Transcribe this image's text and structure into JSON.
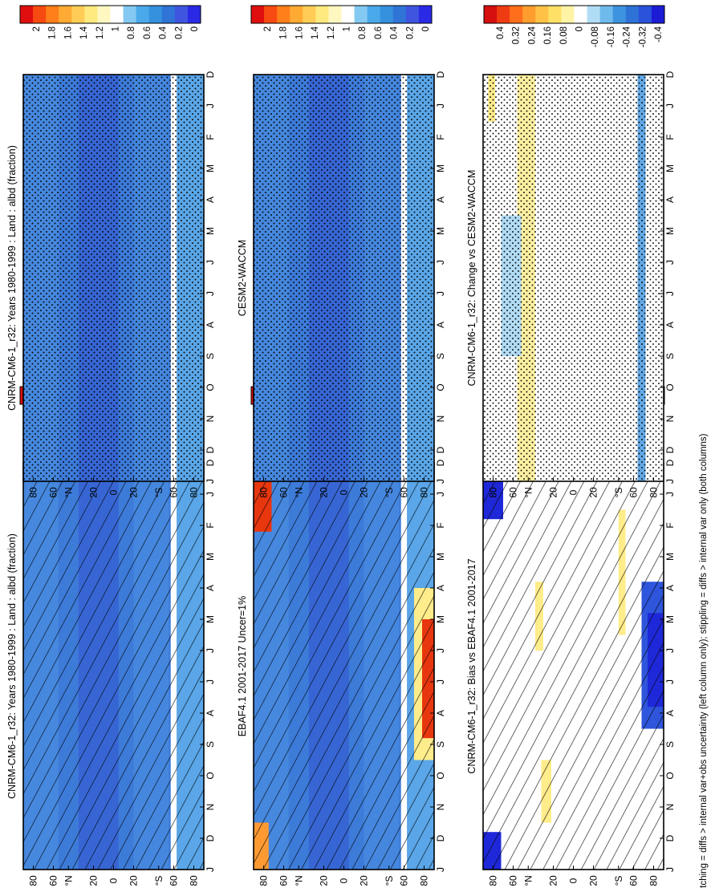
{
  "footnote": "hatching = diffs > internal var+obs uncertainty (left column only); stippling = diffs > internal var only (both columns)",
  "colors": {
    "clim": [
      "#2a2ae6",
      "#3f55df",
      "#2f74d6",
      "#3590dd",
      "#49a9ea",
      "#84c9f2",
      "#ffffff",
      "#fff7c0",
      "#ffea7f",
      "#ffcc55",
      "#ffaa33",
      "#ff7f1a",
      "#f74a10",
      "#e00f0f"
    ],
    "diff": [
      "#1c1cd6",
      "#2a52db",
      "#2e72d8",
      "#3d93e0",
      "#6fbaec",
      "#b1dcf5",
      "#ffffff",
      "#fff3a6",
      "#ffe066",
      "#ffc247",
      "#ff9d2e",
      "#ff6e1a",
      "#ef3b12",
      "#d60f0f"
    ],
    "fill": {
      "clim_base": "#3d7bd9",
      "clim_deep": "#3766d4",
      "clim_light": "#5aa6e8",
      "warm": "#ffec8a",
      "red": "#e8360f",
      "orange": "#ff9a33",
      "strong_blue": "#1f28d8"
    }
  },
  "chart_data": [
    {
      "type": "heatmap",
      "title": "CNRM-CM6-1_r32: Years 1980-1999 : Land : albd (fraction)",
      "x": [
        "D",
        "J",
        "F",
        "M",
        "A",
        "M",
        "J",
        "J",
        "A",
        "S",
        "O",
        "N",
        "D",
        "J"
      ],
      "y_ticks": [
        "80",
        "60",
        "°N",
        "20",
        "0",
        "20",
        "°S",
        "60",
        "80"
      ],
      "ylim": [
        -90,
        90
      ],
      "colorbar": [
        "2",
        "1.8",
        "1.6",
        "1.4",
        "1.2",
        "1",
        "0.8",
        "0.6",
        "0.4",
        "0.2",
        "0"
      ],
      "overlay": "hatching",
      "grid": false,
      "approx_field": {
        "background": 0.4,
        "deep_band_lat": [
          0,
          30
        ],
        "missing_band_lat": [
          -63,
          -58
        ],
        "antarctic": 0.6
      }
    },
    {
      "type": "heatmap",
      "title": "CNRM-CM6-1_r32: Years 1980-1999 : Land : albd (fraction)",
      "x": [
        "D",
        "J",
        "F",
        "M",
        "A",
        "M",
        "J",
        "J",
        "A",
        "S",
        "O",
        "N",
        "D",
        "J"
      ],
      "y_ticks": [
        "80",
        "60",
        "°N",
        "20",
        "0",
        "20",
        "°S",
        "60",
        "80"
      ],
      "ylim": [
        -90,
        90
      ],
      "colorbar": [
        "2",
        "1.8",
        "1.6",
        "1.4",
        "1.2",
        "1",
        "0.8",
        "0.6",
        "0.4",
        "0.2",
        "0"
      ],
      "overlay": "stippling",
      "grid": false
    },
    {
      "type": "heatmap",
      "title": "EBAF4.1 2001-2017 Uncer=1%",
      "x": [
        "D",
        "J",
        "F",
        "M",
        "A",
        "M",
        "J",
        "J",
        "A",
        "S",
        "O",
        "N",
        "D",
        "J"
      ],
      "y_ticks": [
        "80",
        "60",
        "°N",
        "20",
        "0",
        "20",
        "°S",
        "60",
        "80"
      ],
      "ylim": [
        -90,
        90
      ],
      "colorbar": [
        "2",
        "1.8",
        "1.6",
        "1.4",
        "1.2",
        "1",
        "0.8",
        "0.6",
        "0.4",
        "0.2",
        "0"
      ],
      "overlay": "hatching",
      "grid": false,
      "approx_field": {
        "background": 0.4,
        "polar_north_winter": 1.8,
        "antarctic_winter": 1.6
      }
    },
    {
      "type": "heatmap",
      "title": "CESM2-WACCM",
      "x": [
        "D",
        "J",
        "F",
        "M",
        "A",
        "M",
        "J",
        "J",
        "A",
        "S",
        "O",
        "N",
        "D",
        "J"
      ],
      "y_ticks": [
        "80",
        "60",
        "°N",
        "20",
        "0",
        "20",
        "°S",
        "60",
        "80"
      ],
      "ylim": [
        -90,
        90
      ],
      "colorbar": [
        "2",
        "1.8",
        "1.6",
        "1.4",
        "1.2",
        "1",
        "0.8",
        "0.6",
        "0.4",
        "0.2",
        "0"
      ],
      "overlay": "stippling",
      "grid": false
    },
    {
      "type": "heatmap",
      "title": "CNRM-CM6-1_r32: Bias vs EBAF4.1 2001-2017",
      "x": [
        "D",
        "J",
        "F",
        "M",
        "A",
        "M",
        "J",
        "J",
        "A",
        "S",
        "O",
        "N",
        "D",
        "J"
      ],
      "y_ticks": [
        "80",
        "60",
        "°N",
        "20",
        "0",
        "20",
        "°S",
        "60",
        "80"
      ],
      "ylim": [
        -90,
        90
      ],
      "colorbar": [
        "0.4",
        "0.32",
        "0.24",
        "0.16",
        "0.08",
        "0",
        "-0.08",
        "-0.16",
        "-0.24",
        "-0.32",
        "-0.4"
      ],
      "overlay": "hatching",
      "grid": false,
      "approx_field": {
        "background": 0,
        "north_polar_winter": -0.4,
        "south_polar_winter": -0.4,
        "bands": 0.08
      }
    },
    {
      "type": "heatmap",
      "title": "CNRM-CM6-1_r32: Change vs CESM2-WACCM",
      "x": [
        "D",
        "J",
        "F",
        "M",
        "A",
        "M",
        "J",
        "J",
        "A",
        "S",
        "O",
        "N",
        "D",
        "J"
      ],
      "y_ticks": [
        "80",
        "60",
        "°N",
        "20",
        "0",
        "20",
        "°S",
        "60",
        "80"
      ],
      "ylim": [
        -90,
        90
      ],
      "colorbar": [
        "0.4",
        "0.32",
        "0.24",
        "0.16",
        "0.08",
        "0",
        "-0.08",
        "-0.16",
        "-0.24",
        "-0.32",
        "-0.4"
      ],
      "overlay": "stippling",
      "grid": false,
      "approx_field": {
        "background": 0,
        "north_midlat": 0.08,
        "north_subpolar_summer": -0.08
      }
    }
  ]
}
